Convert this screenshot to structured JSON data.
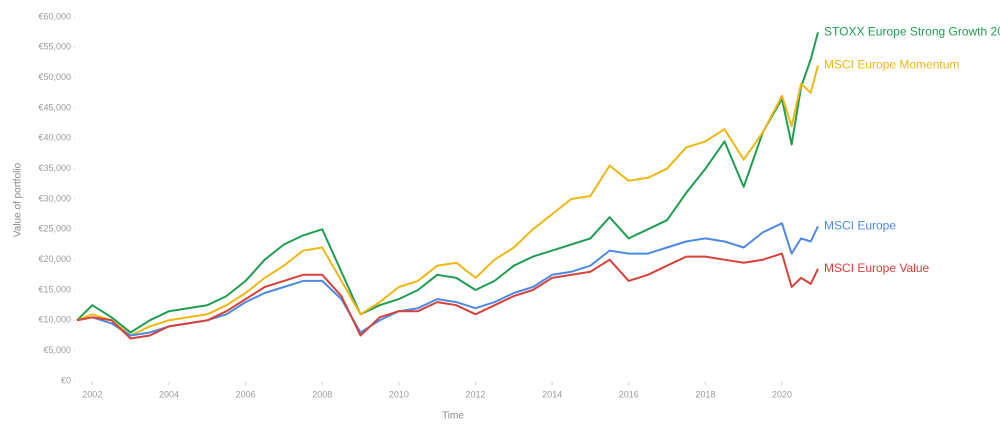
{
  "chart_data": {
    "type": "line",
    "x_label": "Time",
    "y_label": "Value of portfolio",
    "x": [
      2001.6,
      2002.0,
      2002.5,
      2003.0,
      2003.5,
      2004.0,
      2004.5,
      2005.0,
      2005.5,
      2006.0,
      2006.5,
      2007.0,
      2007.5,
      2008.0,
      2008.5,
      2009.0,
      2009.5,
      2010.0,
      2010.5,
      2011.0,
      2011.5,
      2012.0,
      2012.5,
      2013.0,
      2013.5,
      2014.0,
      2014.5,
      2015.0,
      2015.5,
      2016.0,
      2016.5,
      2017.0,
      2017.5,
      2018.0,
      2018.5,
      2019.0,
      2019.5,
      2020.0,
      2020.25,
      2020.5,
      2020.75,
      2020.94
    ],
    "series": [
      {
        "name": "STOXX Europe Strong Growth 20",
        "color": "#1e9e50",
        "values": [
          10000,
          12500,
          10500,
          8000,
          10000,
          11500,
          12000,
          12500,
          14000,
          16500,
          20000,
          22500,
          24000,
          25000,
          18000,
          11000,
          12500,
          13500,
          15000,
          17500,
          17000,
          15000,
          16500,
          19000,
          20500,
          21500,
          22500,
          23500,
          27000,
          23500,
          25000,
          26500,
          31000,
          35000,
          39500,
          32000,
          41000,
          46500,
          39000,
          48500,
          53000,
          57500
        ]
      },
      {
        "name": "MSCI Europe Momentum",
        "color": "#f0b712",
        "values": [
          10000,
          11000,
          10000,
          7500,
          9000,
          10000,
          10500,
          11000,
          12500,
          14500,
          17000,
          19000,
          21500,
          22000,
          16500,
          11000,
          13000,
          15500,
          16500,
          19000,
          19500,
          17000,
          20000,
          22000,
          25000,
          27500,
          30000,
          30500,
          35500,
          33000,
          33500,
          35000,
          38500,
          39500,
          41500,
          36500,
          41000,
          47000,
          42000,
          49000,
          47500,
          52000
        ]
      },
      {
        "name": "MSCI Europe",
        "color": "#4d8ae6",
        "values": [
          10000,
          10500,
          9500,
          7500,
          8000,
          9000,
          9500,
          10000,
          11000,
          13000,
          14500,
          15500,
          16500,
          16500,
          13500,
          8000,
          10000,
          11500,
          12000,
          13500,
          13000,
          12000,
          13000,
          14500,
          15500,
          17500,
          18000,
          19000,
          21500,
          21000,
          21000,
          22000,
          23000,
          23500,
          23000,
          22000,
          24500,
          26000,
          21000,
          23500,
          23000,
          25500
        ]
      },
      {
        "name": "MSCI Europe Value",
        "color": "#d6423a",
        "values": [
          10000,
          10500,
          10000,
          7000,
          7500,
          9000,
          9500,
          10000,
          11500,
          13500,
          15500,
          16500,
          17500,
          17500,
          14000,
          7500,
          10500,
          11500,
          11500,
          13000,
          12500,
          11000,
          12500,
          14000,
          15000,
          17000,
          17500,
          18000,
          20000,
          16500,
          17500,
          19000,
          20500,
          20500,
          20000,
          19500,
          20000,
          21000,
          15500,
          17000,
          16000,
          18500
        ]
      }
    ],
    "xlim": [
      2001.6,
      2020.94
    ],
    "xticks": [
      2002,
      2004,
      2006,
      2008,
      2010,
      2012,
      2014,
      2016,
      2018,
      2020
    ],
    "ylim": [
      0,
      60000
    ],
    "yticks": [
      {
        "value": 0,
        "label": "€0"
      },
      {
        "value": 5000,
        "label": "€5,000"
      },
      {
        "value": 10000,
        "label": "€10,000"
      },
      {
        "value": 15000,
        "label": "€15,000"
      },
      {
        "value": 20000,
        "label": "€20,000"
      },
      {
        "value": 25000,
        "label": "€25,000"
      },
      {
        "value": 30000,
        "label": "€30,000"
      },
      {
        "value": 35000,
        "label": "€35,000"
      },
      {
        "value": 40000,
        "label": "€40,000"
      },
      {
        "value": 45000,
        "label": "€45,000"
      },
      {
        "value": 50000,
        "label": "€50,000"
      },
      {
        "value": 55000,
        "label": "€55,000"
      },
      {
        "value": 60000,
        "label": "€60,000"
      }
    ],
    "grid": false
  }
}
